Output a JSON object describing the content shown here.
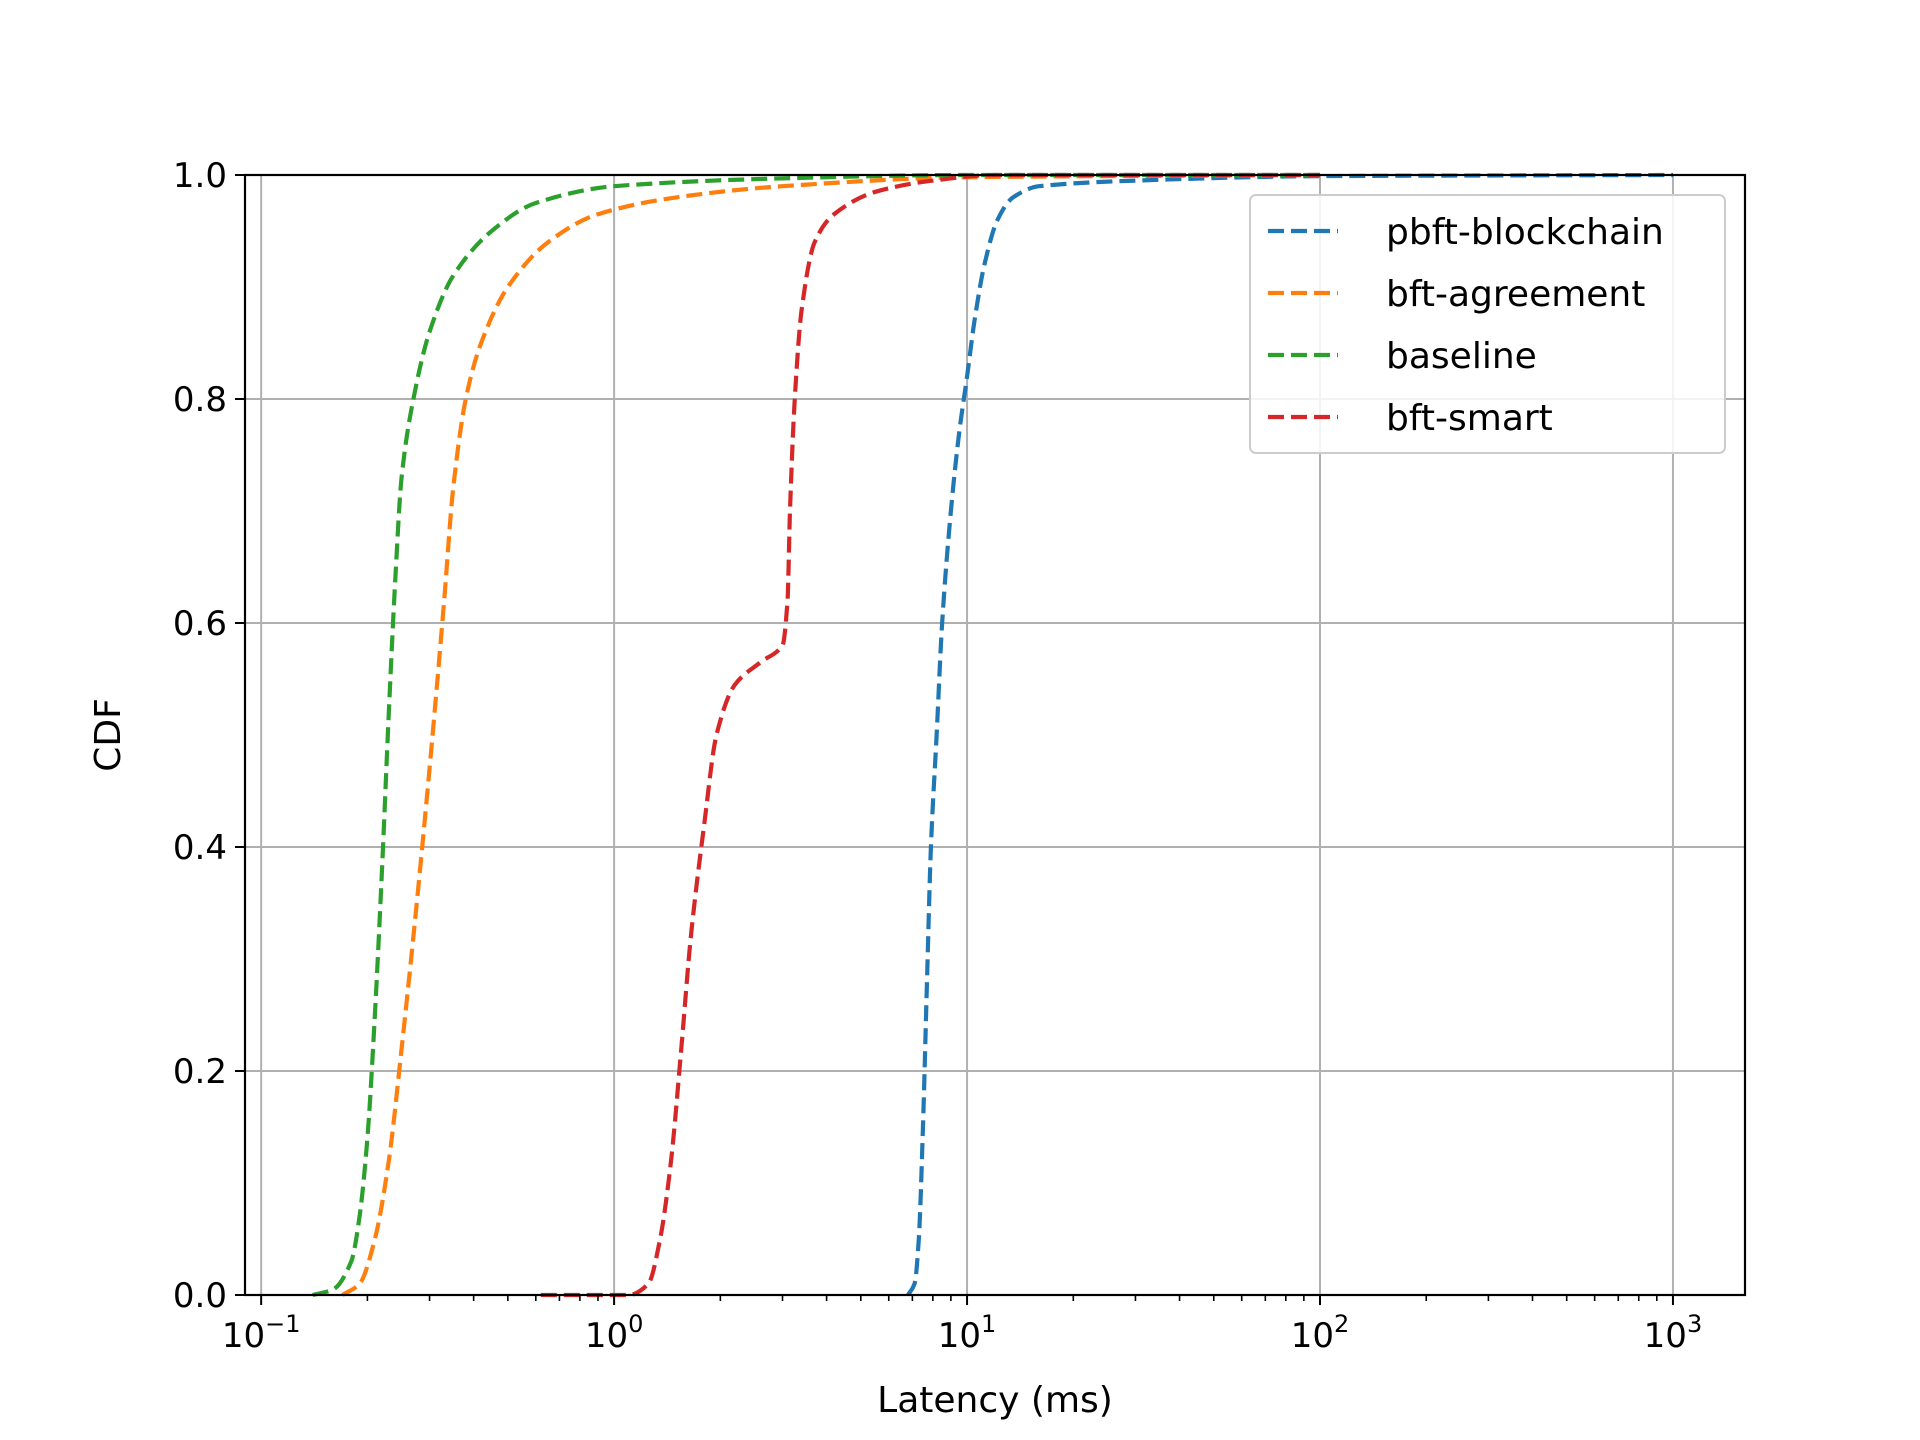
{
  "chart_data": {
    "type": "line",
    "title": "",
    "xlabel": "Latency (ms)",
    "ylabel": "CDF",
    "xscale": "log",
    "xlim": [
      0.09,
      1600
    ],
    "ylim": [
      0,
      1.0
    ],
    "grid": true,
    "legend_position": "top-right",
    "x_ticks": [
      {
        "value": 0.1,
        "base": "10",
        "exp": "−1"
      },
      {
        "value": 1,
        "base": "10",
        "exp": "0"
      },
      {
        "value": 10,
        "base": "10",
        "exp": "1"
      },
      {
        "value": 100,
        "base": "10",
        "exp": "2"
      },
      {
        "value": 1000,
        "base": "10",
        "exp": "3"
      }
    ],
    "y_ticks": [
      "0.0",
      "0.2",
      "0.4",
      "0.6",
      "0.8",
      "1.0"
    ],
    "series": [
      {
        "name": "pbft-blockchain",
        "color": "#1f77b4",
        "points": [
          [
            6.8,
            0.0
          ],
          [
            7.1,
            0.01
          ],
          [
            7.3,
            0.05
          ],
          [
            7.5,
            0.15
          ],
          [
            7.7,
            0.28
          ],
          [
            7.9,
            0.4
          ],
          [
            8.2,
            0.5
          ],
          [
            8.5,
            0.6
          ],
          [
            9.0,
            0.7
          ],
          [
            9.5,
            0.77
          ],
          [
            10.0,
            0.82
          ],
          [
            10.5,
            0.87
          ],
          [
            11.2,
            0.92
          ],
          [
            12.2,
            0.96
          ],
          [
            13.5,
            0.98
          ],
          [
            16.0,
            0.99
          ],
          [
            30,
            0.995
          ],
          [
            100,
            0.999
          ],
          [
            1000,
            1.0
          ]
        ]
      },
      {
        "name": "bft-agreement",
        "color": "#ff7f0e",
        "points": [
          [
            0.17,
            0.0
          ],
          [
            0.19,
            0.01
          ],
          [
            0.21,
            0.05
          ],
          [
            0.23,
            0.12
          ],
          [
            0.25,
            0.22
          ],
          [
            0.27,
            0.32
          ],
          [
            0.29,
            0.42
          ],
          [
            0.31,
            0.52
          ],
          [
            0.33,
            0.62
          ],
          [
            0.35,
            0.72
          ],
          [
            0.38,
            0.8
          ],
          [
            0.42,
            0.85
          ],
          [
            0.5,
            0.9
          ],
          [
            0.65,
            0.94
          ],
          [
            0.9,
            0.965
          ],
          [
            1.5,
            0.98
          ],
          [
            3,
            0.99
          ],
          [
            10,
            0.998
          ],
          [
            100,
            1.0
          ]
        ]
      },
      {
        "name": "baseline",
        "color": "#2ca02c",
        "points": [
          [
            0.14,
            0.0
          ],
          [
            0.16,
            0.005
          ],
          [
            0.18,
            0.03
          ],
          [
            0.19,
            0.07
          ],
          [
            0.2,
            0.14
          ],
          [
            0.21,
            0.25
          ],
          [
            0.22,
            0.38
          ],
          [
            0.23,
            0.52
          ],
          [
            0.24,
            0.64
          ],
          [
            0.25,
            0.73
          ],
          [
            0.27,
            0.8
          ],
          [
            0.3,
            0.86
          ],
          [
            0.35,
            0.91
          ],
          [
            0.45,
            0.95
          ],
          [
            0.6,
            0.975
          ],
          [
            1.0,
            0.99
          ],
          [
            3,
            0.997
          ],
          [
            10,
            1.0
          ],
          [
            100,
            1.0
          ]
        ]
      },
      {
        "name": "bft-smart",
        "color": "#d62728",
        "points": [
          [
            0.62,
            0.0
          ],
          [
            1.1,
            0.0
          ],
          [
            1.25,
            0.01
          ],
          [
            1.35,
            0.05
          ],
          [
            1.45,
            0.12
          ],
          [
            1.55,
            0.22
          ],
          [
            1.65,
            0.32
          ],
          [
            1.8,
            0.42
          ],
          [
            1.95,
            0.5
          ],
          [
            2.2,
            0.545
          ],
          [
            2.6,
            0.565
          ],
          [
            3.0,
            0.58
          ],
          [
            3.1,
            0.62
          ],
          [
            3.15,
            0.7
          ],
          [
            3.25,
            0.8
          ],
          [
            3.4,
            0.88
          ],
          [
            3.7,
            0.94
          ],
          [
            4.2,
            0.965
          ],
          [
            5.5,
            0.985
          ],
          [
            8,
            0.995
          ],
          [
            12,
            1.0
          ],
          [
            100,
            1.0
          ]
        ]
      }
    ]
  }
}
